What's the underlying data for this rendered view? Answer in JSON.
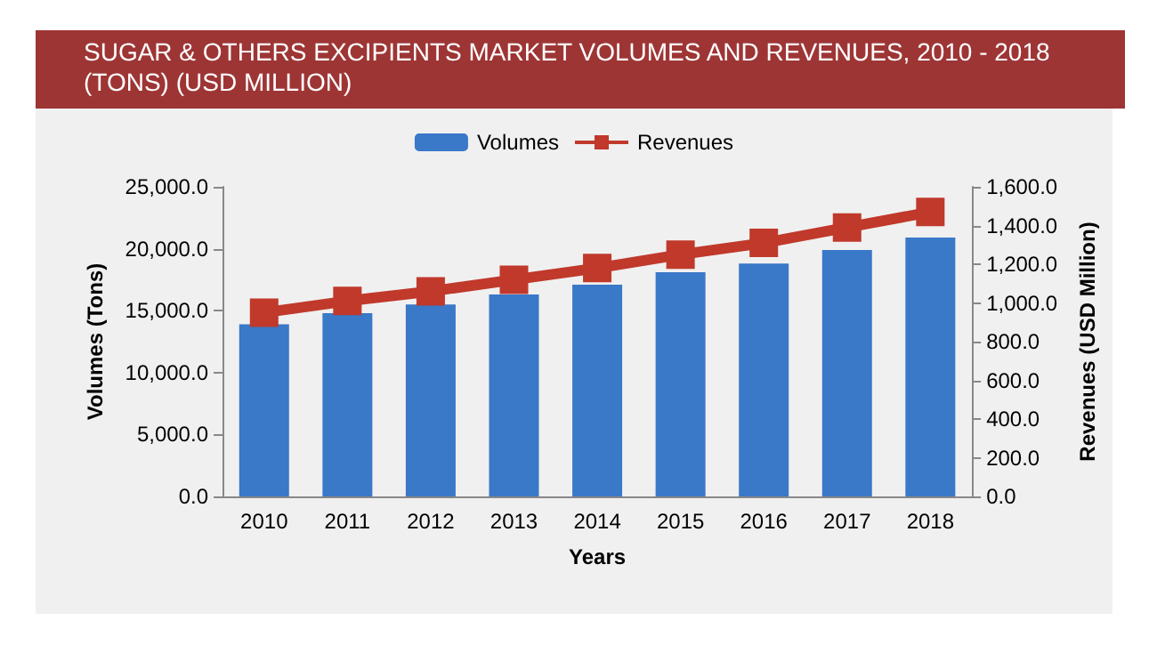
{
  "chart_data": {
    "type": "bar",
    "title": "SUGAR & OTHERS EXCIPIENTS MARKET VOLUMES AND REVENUES, 2010 - 2018 (TONS) (USD MILLION)",
    "xlabel": "Years",
    "ylabel": "Volumes (Tons)",
    "y2label": "Revenues (USD Million)",
    "categories": [
      "2010",
      "2011",
      "2012",
      "2013",
      "2014",
      "2015",
      "2016",
      "2017",
      "2018"
    ],
    "series": [
      {
        "name": "Volumes",
        "color": "#3a78c8",
        "values": [
          13900,
          14800,
          15500,
          16300,
          17100,
          18100,
          18800,
          19900,
          20900
        ]
      },
      {
        "name": "Revenues",
        "type": "line",
        "axis": "y2",
        "color": "#c0392b",
        "marker": "square",
        "values": [
          950,
          1010,
          1060,
          1120,
          1180,
          1250,
          1310,
          1390,
          1470
        ]
      }
    ],
    "ylim": [
      0,
      25000
    ],
    "yticks": [
      {
        "value": 0,
        "label": "0.0"
      },
      {
        "value": 5000,
        "label": "5,000.0"
      },
      {
        "value": 10000,
        "label": "10,000.0"
      },
      {
        "value": 15000,
        "label": "15,000.0"
      },
      {
        "value": 20000,
        "label": "20,000.0"
      },
      {
        "value": 25000,
        "label": "25,000.0"
      }
    ],
    "y2lim": [
      0,
      1600
    ],
    "y2ticks": [
      {
        "value": 0,
        "label": "0.0"
      },
      {
        "value": 200,
        "label": "200.0"
      },
      {
        "value": 400,
        "label": "400.0"
      },
      {
        "value": 600,
        "label": "600.0"
      },
      {
        "value": 800,
        "label": "800.0"
      },
      {
        "value": 1000,
        "label": "1,000.0"
      },
      {
        "value": 1200,
        "label": "1,200.0"
      },
      {
        "value": 1400,
        "label": "1,400.0"
      },
      {
        "value": 1600,
        "label": "1,600.0"
      }
    ],
    "grid": false,
    "legend": "top"
  }
}
